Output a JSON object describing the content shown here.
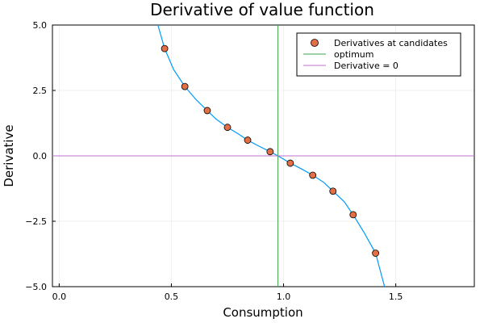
{
  "chart_data": {
    "type": "scatter",
    "title": "Derivative of value function",
    "xlabel": "Consumption",
    "ylabel": "Derivative",
    "xlim": [
      -0.03,
      1.85
    ],
    "ylim": [
      -5.0,
      5.0
    ],
    "x_ticks": [
      0.0,
      0.5,
      1.0,
      1.5
    ],
    "x_tick_labels": [
      "0.0",
      "0.5",
      "1.0",
      "1.5"
    ],
    "y_ticks": [
      -5.0,
      -2.5,
      0.0,
      2.5,
      5.0
    ],
    "y_tick_labels": [
      "−5.0",
      "−2.5",
      "0.0",
      "2.5",
      "5.0"
    ],
    "grid": true,
    "legend_position": "top-right",
    "series": [
      {
        "name": "",
        "kind": "line",
        "color": "#009AFA",
        "x": [
          0.44,
          0.47,
          0.51,
          0.56,
          0.61,
          0.66,
          0.7,
          0.75,
          0.8,
          0.84,
          0.89,
          0.94,
          0.975,
          1.03,
          1.08,
          1.13,
          1.18,
          1.22,
          1.27,
          1.31,
          1.36,
          1.41,
          1.45
        ],
        "y": [
          5.0,
          4.1,
          3.3,
          2.65,
          2.15,
          1.73,
          1.4,
          1.09,
          0.83,
          0.6,
          0.37,
          0.16,
          0.0,
          -0.28,
          -0.5,
          -0.74,
          -1.02,
          -1.35,
          -1.75,
          -2.25,
          -2.95,
          -3.72,
          -5.0
        ]
      },
      {
        "name": "Derivatives at candidates",
        "kind": "scatter",
        "color": "#E26F46",
        "x": [
          0.47,
          0.56,
          0.66,
          0.75,
          0.84,
          0.94,
          1.03,
          1.13,
          1.22,
          1.31,
          1.41
        ],
        "y": [
          4.1,
          2.65,
          1.73,
          1.09,
          0.6,
          0.16,
          -0.28,
          -0.74,
          -1.35,
          -2.25,
          -3.72
        ]
      },
      {
        "name": "optimum",
        "kind": "vline",
        "color": "#3DA44D",
        "x": 0.975
      },
      {
        "name": "Derivative = 0",
        "kind": "hline",
        "color": "#C271D2",
        "y": 0.0
      }
    ]
  }
}
